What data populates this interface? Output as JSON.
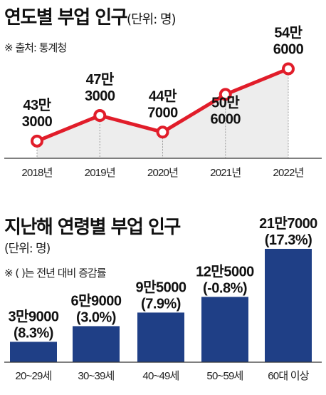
{
  "top": {
    "title": "연도별 부업 인구",
    "unit": "(단위: 명)",
    "source": "※ 출처: 통계청"
  },
  "bottom": {
    "title": "지난해 연령별 부업 인구",
    "unit": "(단위: 명)",
    "note": "※ (  )는 전년 대비 증감률"
  },
  "colors": {
    "line": "#e11d2a",
    "bar": "#1f3f86",
    "area": "#ededed"
  },
  "chart_data": [
    {
      "type": "line",
      "title": "연도별 부업 인구",
      "categories": [
        "2018년",
        "2019년",
        "2020년",
        "2021년",
        "2022년"
      ],
      "values": [
        433000,
        473000,
        447000,
        506000,
        546000
      ],
      "labels": [
        [
          "43만",
          "3000"
        ],
        [
          "47만",
          "3000"
        ],
        [
          "44만",
          "7000"
        ],
        [
          "50만",
          "6000"
        ],
        [
          "54만",
          "6000"
        ]
      ],
      "ylim": [
        415000,
        560000
      ]
    },
    {
      "type": "bar",
      "title": "지난해 연령별 부업 인구",
      "categories": [
        "20~29세",
        "30~39세",
        "40~49세",
        "50~59세",
        "60대 이상"
      ],
      "values": [
        39000,
        69000,
        95000,
        125000,
        217000
      ],
      "labels": [
        [
          "3만9000",
          "(8.3%)"
        ],
        [
          "6만9000",
          "(3.0%)"
        ],
        [
          "9만5000",
          "(7.9%)"
        ],
        [
          "12만5000",
          "(-0.8%)"
        ],
        [
          "21만7000",
          "(17.3%)"
        ]
      ],
      "growth_pct": [
        8.3,
        3.0,
        7.9,
        -0.8,
        17.3
      ],
      "ylim": [
        0,
        217000
      ]
    }
  ]
}
